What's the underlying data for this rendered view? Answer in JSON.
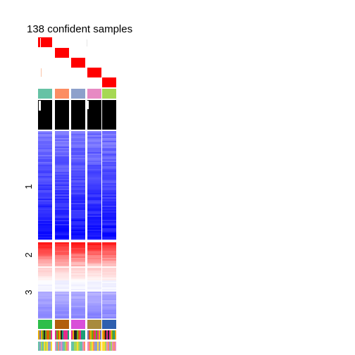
{
  "chart_data": {
    "type": "heatmap",
    "title": "138 confident samples",
    "n_groups": 5,
    "group_colors": [
      "#66C2A5",
      "#FC8D62",
      "#8DA0CB",
      "#E78AC3",
      "#A6D854"
    ],
    "membership_color": "#FF0000",
    "silhouette_color": "#000000",
    "row_clusters": [
      {
        "label": "1",
        "rows": 62,
        "value_range": [
          -1.0,
          -0.7
        ],
        "low_color": "#0000FF",
        "high_color": "#FF0000"
      },
      {
        "label": "2",
        "rows": 14,
        "value_range": [
          0.7,
          1.0
        ]
      },
      {
        "label": "3",
        "rows": 30,
        "value_range": [
          0.6,
          -0.4
        ]
      }
    ],
    "bottom_annotation_1_colors": [
      "#2DBE4A",
      "#B15E0C",
      "#D94FD9",
      "#A88B3E",
      "#2E5FAF"
    ],
    "bottom_annotation_2_palette": [
      "#1B9E77",
      "#D95F02",
      "#7570B3",
      "#E7298A",
      "#66A61E",
      "#E6AB02",
      "#222222"
    ],
    "bottom_annotation_3_palette": [
      "#66C2A5",
      "#FC8D62",
      "#8DA0CB",
      "#E78AC3",
      "#A6D854",
      "#FFD92F"
    ]
  }
}
